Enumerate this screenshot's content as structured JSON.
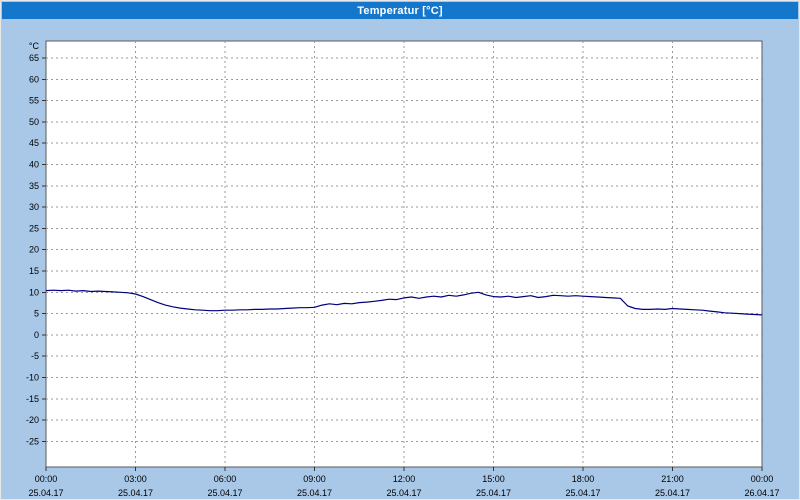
{
  "window": {
    "title": "Temperatur [°C]"
  },
  "colors": {
    "background": "#a9c7e7",
    "titlebar": "#1477cc",
    "plot_background": "#ffffff",
    "plot_border": "#5a5a5a",
    "grid": "#9a9a9a",
    "line": "#000080",
    "text": "#000000"
  },
  "chart_data": {
    "type": "line",
    "title": "Temperatur [°C]",
    "xlabel": "",
    "ylabel": "°C",
    "ylim": [
      -31,
      69
    ],
    "xlim": [
      0,
      24
    ],
    "grid": "dashed",
    "legend": "none",
    "line_color": "#000080",
    "grid_color": "#9a9a9a",
    "y_ticks": [
      65,
      60,
      55,
      50,
      45,
      40,
      35,
      30,
      25,
      20,
      15,
      10,
      5,
      0,
      -5,
      -10,
      -15,
      -20,
      -25
    ],
    "x_ticks": [
      {
        "hour": 0,
        "time": "00:00",
        "date": "25.04.17"
      },
      {
        "hour": 3,
        "time": "03:00",
        "date": "25.04.17"
      },
      {
        "hour": 6,
        "time": "06:00",
        "date": "25.04.17"
      },
      {
        "hour": 9,
        "time": "09:00",
        "date": "25.04.17"
      },
      {
        "hour": 12,
        "time": "12:00",
        "date": "25.04.17"
      },
      {
        "hour": 15,
        "time": "15:00",
        "date": "25.04.17"
      },
      {
        "hour": 18,
        "time": "18:00",
        "date": "25.04.17"
      },
      {
        "hour": 21,
        "time": "21:00",
        "date": "25.04.17"
      },
      {
        "hour": 24,
        "time": "00:00",
        "date": "26.04.17"
      }
    ],
    "series": [
      {
        "name": "Temperatur",
        "points": [
          [
            0,
            10.4
          ],
          [
            0.25,
            10.5
          ],
          [
            0.5,
            10.4
          ],
          [
            0.75,
            10.5
          ],
          [
            1,
            10.3
          ],
          [
            1.25,
            10.4
          ],
          [
            1.5,
            10.2
          ],
          [
            1.75,
            10.3
          ],
          [
            2,
            10.2
          ],
          [
            2.25,
            10.1
          ],
          [
            2.5,
            10.0
          ],
          [
            2.75,
            9.9
          ],
          [
            3,
            9.6
          ],
          [
            3.25,
            9.0
          ],
          [
            3.5,
            8.3
          ],
          [
            3.75,
            7.6
          ],
          [
            4,
            7.0
          ],
          [
            4.25,
            6.6
          ],
          [
            4.5,
            6.3
          ],
          [
            4.75,
            6.1
          ],
          [
            5,
            5.9
          ],
          [
            5.25,
            5.8
          ],
          [
            5.5,
            5.7
          ],
          [
            5.75,
            5.7
          ],
          [
            6,
            5.8
          ],
          [
            6.25,
            5.8
          ],
          [
            6.5,
            5.9
          ],
          [
            6.75,
            5.9
          ],
          [
            7,
            6.0
          ],
          [
            7.25,
            6.0
          ],
          [
            7.5,
            6.1
          ],
          [
            7.75,
            6.1
          ],
          [
            8,
            6.2
          ],
          [
            8.25,
            6.3
          ],
          [
            8.5,
            6.4
          ],
          [
            8.75,
            6.4
          ],
          [
            9,
            6.5
          ],
          [
            9.25,
            7.0
          ],
          [
            9.5,
            7.3
          ],
          [
            9.75,
            7.1
          ],
          [
            10,
            7.4
          ],
          [
            10.25,
            7.3
          ],
          [
            10.5,
            7.6
          ],
          [
            10.75,
            7.7
          ],
          [
            11,
            7.9
          ],
          [
            11.25,
            8.1
          ],
          [
            11.5,
            8.4
          ],
          [
            11.75,
            8.3
          ],
          [
            12,
            8.7
          ],
          [
            12.25,
            8.9
          ],
          [
            12.5,
            8.6
          ],
          [
            12.75,
            8.9
          ],
          [
            13,
            9.1
          ],
          [
            13.25,
            8.9
          ],
          [
            13.5,
            9.3
          ],
          [
            13.75,
            9.1
          ],
          [
            14,
            9.4
          ],
          [
            14.25,
            9.8
          ],
          [
            14.5,
            10.0
          ],
          [
            14.75,
            9.4
          ],
          [
            15,
            9.0
          ],
          [
            15.25,
            8.9
          ],
          [
            15.5,
            9.1
          ],
          [
            15.75,
            8.8
          ],
          [
            16,
            9.0
          ],
          [
            16.25,
            9.2
          ],
          [
            16.5,
            8.8
          ],
          [
            16.75,
            9.0
          ],
          [
            17,
            9.3
          ],
          [
            17.25,
            9.2
          ],
          [
            17.5,
            9.1
          ],
          [
            17.75,
            9.2
          ],
          [
            18,
            9.1
          ],
          [
            18.25,
            9.0
          ],
          [
            18.5,
            8.9
          ],
          [
            18.75,
            8.8
          ],
          [
            19,
            8.7
          ],
          [
            19.25,
            8.6
          ],
          [
            19.5,
            6.8
          ],
          [
            19.75,
            6.2
          ],
          [
            20,
            6.0
          ],
          [
            20.25,
            6.0
          ],
          [
            20.5,
            6.1
          ],
          [
            20.75,
            6.0
          ],
          [
            21,
            6.2
          ],
          [
            21.25,
            6.1
          ],
          [
            21.5,
            6.0
          ],
          [
            21.75,
            5.9
          ],
          [
            22,
            5.8
          ],
          [
            22.25,
            5.6
          ],
          [
            22.5,
            5.4
          ],
          [
            22.75,
            5.2
          ],
          [
            23,
            5.1
          ],
          [
            23.25,
            5.0
          ],
          [
            23.5,
            4.9
          ],
          [
            23.75,
            4.8
          ],
          [
            24,
            4.7
          ]
        ]
      }
    ]
  }
}
